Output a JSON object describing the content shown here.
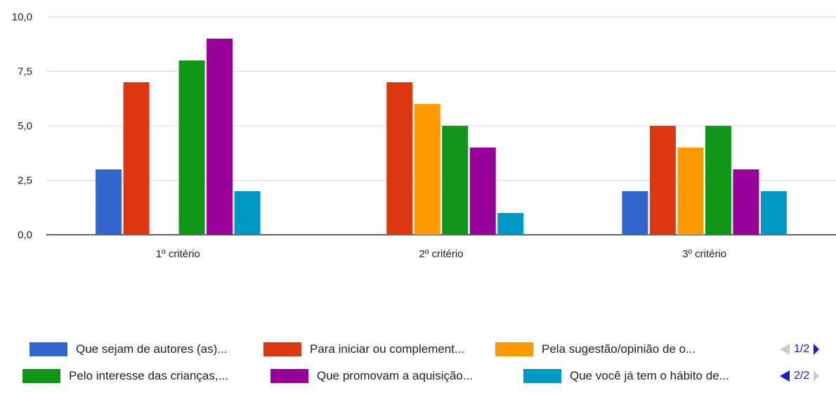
{
  "chart_data": {
    "type": "bar",
    "categories": [
      "1º critério",
      "2º critério",
      "3º critério"
    ],
    "ylim": [
      0,
      10
    ],
    "yticks": [
      "0,0",
      "2,5",
      "5,0",
      "7,5",
      "10,0"
    ],
    "ytick_values": [
      0,
      2.5,
      5,
      7.5,
      10
    ],
    "grid": true,
    "legend_position": "bottom",
    "series": [
      {
        "name": "Que sejam de autores (as)...",
        "color": "#3366cc",
        "values": [
          3,
          0,
          2
        ]
      },
      {
        "name": "Para iniciar ou complement...",
        "color": "#dc3912",
        "values": [
          7,
          7,
          5
        ]
      },
      {
        "name": "Pela sugestão/opinião de o...",
        "color": "#ff9900",
        "values": [
          0,
          6,
          4
        ]
      },
      {
        "name": "Pelo interesse das crianças,...",
        "color": "#109618",
        "values": [
          8,
          5,
          5
        ]
      },
      {
        "name": "Que promovam a aquisição...",
        "color": "#990099",
        "values": [
          9,
          4,
          3
        ]
      },
      {
        "name": "Que você já tem o hábito de...",
        "color": "#0099c6",
        "values": [
          2,
          1,
          2
        ]
      }
    ]
  },
  "legend": {
    "pager_top": "1/2",
    "pager_bottom": "2/2"
  }
}
